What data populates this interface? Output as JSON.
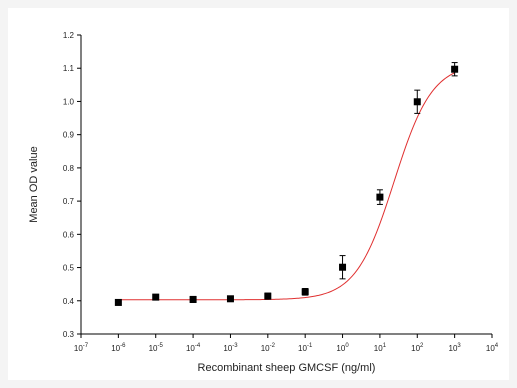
{
  "chart_data": {
    "type": "scatter",
    "xlabel": "Recombinant sheep GMCSF (ng/ml)",
    "ylabel": "Mean OD value",
    "xscale": "log",
    "xlim": [
      1e-07,
      10000
    ],
    "ylim": [
      0.3,
      1.2
    ],
    "x_ticks": [
      1e-07,
      1e-06,
      1e-05,
      0.0001,
      0.001,
      0.01,
      0.1,
      1,
      10,
      100,
      1000,
      10000
    ],
    "x_tick_labels": [
      {
        "base": "10",
        "exp": "-7"
      },
      {
        "base": "10",
        "exp": "-6"
      },
      {
        "base": "10",
        "exp": "-5"
      },
      {
        "base": "10",
        "exp": "-4"
      },
      {
        "base": "10",
        "exp": "-3"
      },
      {
        "base": "10",
        "exp": "-2"
      },
      {
        "base": "10",
        "exp": "-1"
      },
      {
        "base": "10",
        "exp": "0"
      },
      {
        "base": "10",
        "exp": "1"
      },
      {
        "base": "10",
        "exp": "2"
      },
      {
        "base": "10",
        "exp": "3"
      },
      {
        "base": "10",
        "exp": "4"
      }
    ],
    "y_ticks": [
      0.3,
      0.4,
      0.5,
      0.6,
      0.7,
      0.8,
      0.9,
      1.0,
      1.1,
      1.2
    ],
    "y_tick_labels": [
      "0.3",
      "0.4",
      "0.5",
      "0.6",
      "0.7",
      "0.8",
      "0.9",
      "1.0",
      "1.1",
      "1.2"
    ],
    "grid": false,
    "series": [
      {
        "marker": "square",
        "color": "#000000",
        "points": [
          {
            "x": 1e-06,
            "y": 0.395,
            "err": 0.007
          },
          {
            "x": 1e-05,
            "y": 0.411,
            "err": 0.008
          },
          {
            "x": 0.0001,
            "y": 0.404,
            "err": 0.009
          },
          {
            "x": 0.001,
            "y": 0.406,
            "err": 0.008
          },
          {
            "x": 0.01,
            "y": 0.414,
            "err": 0.009
          },
          {
            "x": 0.1,
            "y": 0.427,
            "err": 0.01
          },
          {
            "x": 1,
            "y": 0.501,
            "err": 0.035
          },
          {
            "x": 10,
            "y": 0.712,
            "err": 0.022
          },
          {
            "x": 100,
            "y": 0.999,
            "err": 0.035
          },
          {
            "x": 1000,
            "y": 1.097,
            "err": 0.02
          }
        ]
      }
    ],
    "fit": {
      "type": "sigmoid",
      "color": "#e03030",
      "bottom": 0.403,
      "top": 1.115,
      "log_ec50": 1.38,
      "hill": 0.85,
      "x_range": [
        1e-06,
        1000
      ]
    }
  }
}
